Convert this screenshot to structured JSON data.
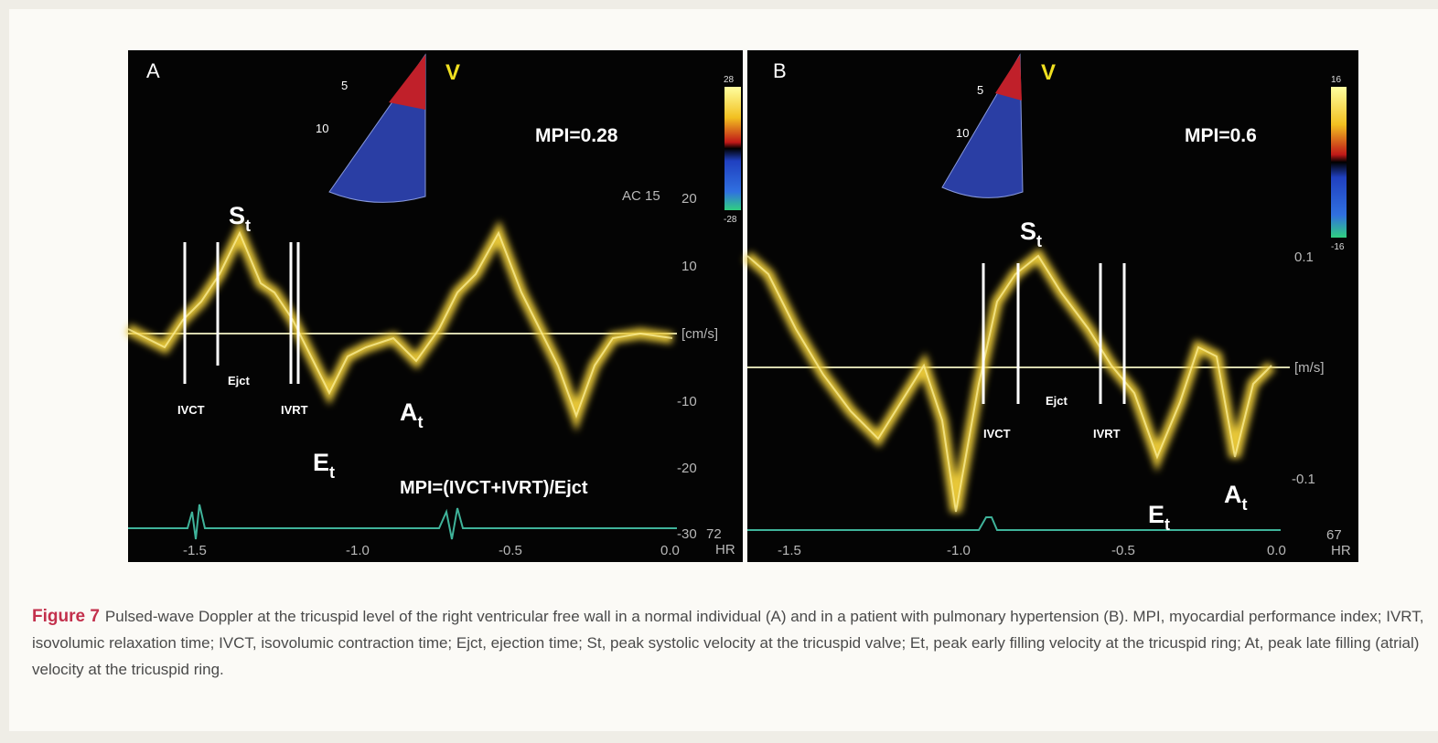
{
  "figure": {
    "panels": [
      {
        "label": "A",
        "view": "V",
        "mpi": "MPI=0.28",
        "formula": "MPI=(IVCT+IVRT)/Ejct",
        "peaks": {
          "systolic": {
            "main": "S",
            "sub": "t"
          },
          "early": {
            "main": "E",
            "sub": "t"
          },
          "late": {
            "main": "A",
            "sub": "t"
          }
        },
        "intervals": [
          "IVCT",
          "Ejct",
          "IVRT"
        ],
        "scale_note": "AC 15",
        "y_axis": [
          "20",
          "10",
          "[cm/s]",
          "-10",
          "-20",
          "-30"
        ],
        "x_axis": [
          "-1.5",
          "-1.0",
          "-0.5",
          "0.0"
        ],
        "colorbar": [
          "28",
          "-28"
        ],
        "depth": [
          "5",
          "10"
        ],
        "heart_rate": [
          "72",
          "HR"
        ]
      },
      {
        "label": "B",
        "view": "V",
        "mpi": "MPI=0.6",
        "peaks": {
          "systolic": {
            "main": "S",
            "sub": "t"
          },
          "early": {
            "main": "E",
            "sub": "t"
          },
          "late": {
            "main": "A",
            "sub": "t"
          }
        },
        "intervals": [
          "IVCT",
          "Ejct",
          "IVRT"
        ],
        "y_axis": [
          "0.1",
          "[m/s]",
          "-0.1"
        ],
        "x_axis": [
          "-1.5",
          "-1.0",
          "-0.5",
          "0.0"
        ],
        "colorbar": [
          "16",
          "-16"
        ],
        "depth": [
          "5",
          "10"
        ],
        "heart_rate": [
          "67",
          "HR"
        ]
      }
    ],
    "caption": {
      "label": "Figure 7",
      "text": "Pulsed-wave Doppler at the tricuspid level of the right ventricular free wall in a normal individual (A) and in a patient with pulmonary hypertension (B). MPI, myocardial performance index; IVRT, isovolumic relaxation time; IVCT, isovolumic contraction time; Ejct, ejection time; St, peak systolic velocity at the tricuspid valve; Et, peak early filling velocity at the tricuspid ring; At, peak late filling (atrial) velocity at the tricuspid ring."
    }
  }
}
